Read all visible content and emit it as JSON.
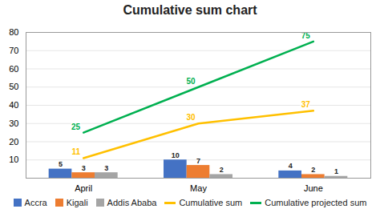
{
  "chart_data": {
    "type": "bar",
    "title": "Cumulative sum chart",
    "categories": [
      "April",
      "May",
      "June"
    ],
    "series": [
      {
        "name": "Accra",
        "type": "bar",
        "color": "#4472c4",
        "values": [
          5,
          10,
          4
        ]
      },
      {
        "name": "Kigali",
        "type": "bar",
        "color": "#ed7d31",
        "values": [
          3,
          7,
          2
        ]
      },
      {
        "name": "Addis Ababa",
        "type": "bar",
        "color": "#a5a5a5",
        "values": [
          3,
          2,
          1
        ]
      },
      {
        "name": "Cumulative sum",
        "type": "line",
        "color": "#ffc000",
        "values": [
          11,
          30,
          37
        ]
      },
      {
        "name": "Cumulative projected sum",
        "type": "line",
        "color": "#00b050",
        "values": [
          25,
          50,
          75
        ]
      }
    ],
    "ylim": [
      0,
      80
    ],
    "yticks": [
      10,
      20,
      30,
      40,
      50,
      60,
      70,
      80
    ],
    "grid": true,
    "legend": "bottom",
    "data_labels": true
  }
}
